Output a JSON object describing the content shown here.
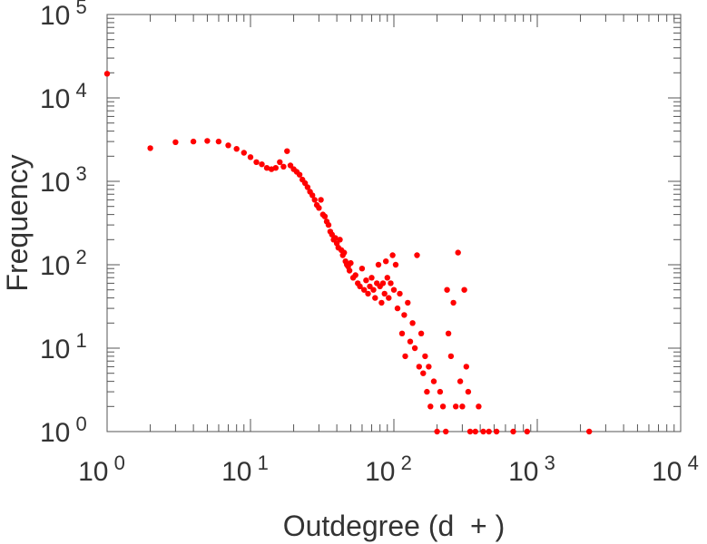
{
  "chart_data": {
    "type": "scatter",
    "title": "",
    "xlabel": "Outdegree (d  + )",
    "ylabel": "Frequency",
    "x_scale": "log",
    "y_scale": "log",
    "xlim": [
      1,
      10000
    ],
    "ylim": [
      1,
      100000
    ],
    "grid": false,
    "colors": {
      "marker": "#ff0000",
      "axis": "#555555",
      "text": "#333333"
    },
    "x_ticks": [
      {
        "base": "10",
        "exp": "0"
      },
      {
        "base": "10",
        "exp": "1"
      },
      {
        "base": "10",
        "exp": "2"
      },
      {
        "base": "10",
        "exp": "3"
      },
      {
        "base": "10",
        "exp": "4"
      }
    ],
    "y_ticks": [
      {
        "base": "10",
        "exp": "0"
      },
      {
        "base": "10",
        "exp": "1"
      },
      {
        "base": "10",
        "exp": "2"
      },
      {
        "base": "10",
        "exp": "3"
      },
      {
        "base": "10",
        "exp": "4"
      },
      {
        "base": "10",
        "exp": "5"
      }
    ],
    "points": [
      [
        1,
        19500
      ],
      [
        2,
        2500
      ],
      [
        3,
        2950
      ],
      [
        4,
        3000
      ],
      [
        5,
        3050
      ],
      [
        6,
        3000
      ],
      [
        7,
        2700
      ],
      [
        8,
        2450
      ],
      [
        9,
        2200
      ],
      [
        10,
        1950
      ],
      [
        11,
        1700
      ],
      [
        12,
        1600
      ],
      [
        13,
        1450
      ],
      [
        14,
        1400
      ],
      [
        15,
        1450
      ],
      [
        16,
        1700
      ],
      [
        17,
        1500
      ],
      [
        18,
        2300
      ],
      [
        19,
        1550
      ],
      [
        20,
        1400
      ],
      [
        21,
        1300
      ],
      [
        22,
        1200
      ],
      [
        23,
        1050
      ],
      [
        24,
        950
      ],
      [
        25,
        850
      ],
      [
        26,
        750
      ],
      [
        27,
        680
      ],
      [
        28,
        600
      ],
      [
        29,
        520
      ],
      [
        30,
        480
      ],
      [
        31,
        600
      ],
      [
        32,
        400
      ],
      [
        33,
        380
      ],
      [
        34,
        330
      ],
      [
        35,
        300
      ],
      [
        36,
        250
      ],
      [
        37,
        230
      ],
      [
        38,
        200
      ],
      [
        39,
        210
      ],
      [
        40,
        180
      ],
      [
        41,
        160
      ],
      [
        42,
        200
      ],
      [
        43,
        150
      ],
      [
        44,
        130
      ],
      [
        45,
        140
      ],
      [
        46,
        110
      ],
      [
        47,
        100
      ],
      [
        48,
        95
      ],
      [
        49,
        85
      ],
      [
        50,
        105
      ],
      [
        52,
        70
      ],
      [
        54,
        75
      ],
      [
        56,
        60
      ],
      [
        58,
        55
      ],
      [
        60,
        90
      ],
      [
        62,
        50
      ],
      [
        64,
        65
      ],
      [
        66,
        45
      ],
      [
        68,
        55
      ],
      [
        70,
        70
      ],
      [
        72,
        50
      ],
      [
        74,
        40
      ],
      [
        76,
        60
      ],
      [
        78,
        100
      ],
      [
        80,
        55
      ],
      [
        82,
        35
      ],
      [
        84,
        60
      ],
      [
        86,
        45
      ],
      [
        88,
        110
      ],
      [
        90,
        70
      ],
      [
        92,
        40
      ],
      [
        95,
        60
      ],
      [
        98,
        130
      ],
      [
        100,
        50
      ],
      [
        103,
        100
      ],
      [
        106,
        30
      ],
      [
        110,
        45
      ],
      [
        114,
        15
      ],
      [
        118,
        25
      ],
      [
        120,
        8
      ],
      [
        125,
        35
      ],
      [
        130,
        12
      ],
      [
        135,
        20
      ],
      [
        140,
        10
      ],
      [
        145,
        130
      ],
      [
        150,
        6
      ],
      [
        155,
        15
      ],
      [
        160,
        5
      ],
      [
        165,
        8
      ],
      [
        170,
        3
      ],
      [
        175,
        6
      ],
      [
        180,
        2
      ],
      [
        190,
        4
      ],
      [
        200,
        1
      ],
      [
        210,
        3
      ],
      [
        220,
        2
      ],
      [
        230,
        1
      ],
      [
        235,
        50
      ],
      [
        240,
        15
      ],
      [
        250,
        8
      ],
      [
        260,
        35
      ],
      [
        270,
        2
      ],
      [
        280,
        140
      ],
      [
        290,
        4
      ],
      [
        300,
        2
      ],
      [
        310,
        50
      ],
      [
        320,
        6
      ],
      [
        330,
        3
      ],
      [
        340,
        1
      ],
      [
        370,
        1
      ],
      [
        390,
        2
      ],
      [
        420,
        1
      ],
      [
        460,
        1
      ],
      [
        520,
        1
      ],
      [
        680,
        1
      ],
      [
        850,
        1
      ],
      [
        2300,
        1
      ]
    ]
  }
}
